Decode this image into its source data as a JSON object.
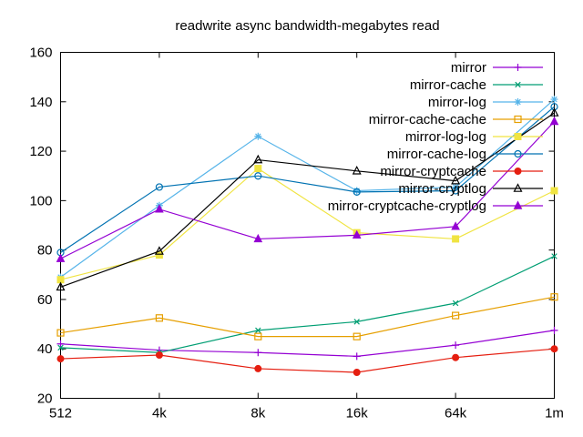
{
  "window": {
    "background": "#ffffff",
    "border_color": "#000000"
  },
  "chart_data": {
    "type": "line",
    "title": "readwrite async bandwidth-megabytes read",
    "xlabel": "",
    "ylabel": "",
    "categories": [
      "512",
      "4k",
      "8k",
      "16k",
      "64k",
      "1m"
    ],
    "ylim": [
      20,
      160
    ],
    "ytick_step": 20,
    "ytick_labels": [
      "20",
      "40",
      "60",
      "80",
      "100",
      "120",
      "140",
      "160"
    ],
    "grid": false,
    "legend_position": "top-right-inside",
    "series": [
      {
        "name": "mirror",
        "color": "#9400d3",
        "marker": "plus",
        "values": [
          42,
          39.5,
          38.5,
          37,
          41.5,
          47.5
        ]
      },
      {
        "name": "mirror-cache",
        "color": "#009e73",
        "marker": "cross",
        "values": [
          40.5,
          38.5,
          47.5,
          51,
          58.5,
          77.5
        ]
      },
      {
        "name": "mirror-log",
        "color": "#56b4e9",
        "marker": "asterisk",
        "values": [
          69,
          98,
          126,
          104,
          105.5,
          141
        ]
      },
      {
        "name": "mirror-cache-cache",
        "color": "#e69f00",
        "marker": "square-open",
        "values": [
          46.5,
          52.5,
          45,
          45,
          53.5,
          61
        ]
      },
      {
        "name": "mirror-log-log",
        "color": "#f0e442",
        "marker": "square-filled",
        "values": [
          68,
          78,
          113,
          87,
          84.5,
          104
        ]
      },
      {
        "name": "mirror-cache-log",
        "color": "#0072b2",
        "marker": "circle-open",
        "values": [
          79,
          105.5,
          110,
          103.5,
          104,
          138
        ]
      },
      {
        "name": "mirror-cryptcache",
        "color": "#e51e10",
        "marker": "circle-filled",
        "values": [
          36,
          37.5,
          32,
          30.5,
          36.5,
          40
        ]
      },
      {
        "name": "mirror-cryptlog",
        "color": "#000000",
        "marker": "triangle-open",
        "values": [
          65,
          79.5,
          116.5,
          112,
          108,
          135.5
        ]
      },
      {
        "name": "mirror-cryptcache-cryptlog",
        "color": "#9400d3",
        "marker": "triangle-filled",
        "values": [
          76.5,
          96.5,
          84.5,
          86,
          89.5,
          132
        ]
      }
    ]
  }
}
